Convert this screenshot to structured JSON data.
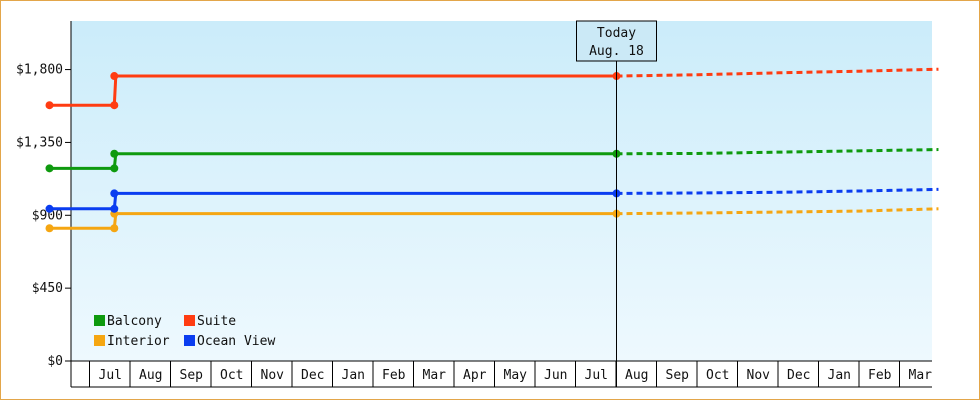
{
  "colors": {
    "frame_border": "#e3a64a",
    "plot_bg_top": "#cbecfa",
    "plot_bg_bottom": "#eef9fe",
    "axis": "#000000",
    "today_box_bg": "#cbe9f6"
  },
  "today_marker": {
    "line1": "Today",
    "line2": "Aug. 18",
    "x_index": 14
  },
  "chart_data": {
    "type": "line",
    "title": "",
    "xlabel": "",
    "ylabel": "",
    "ylim": [
      0,
      2100
    ],
    "y_ticks": [
      {
        "value": 0,
        "label": "$0"
      },
      {
        "value": 450,
        "label": "$450"
      },
      {
        "value": 900,
        "label": "$900"
      },
      {
        "value": 1350,
        "label": "$1,350"
      },
      {
        "value": 1800,
        "label": "$1,800"
      }
    ],
    "x_months": [
      "",
      "Jul",
      "Aug",
      "Sep",
      "Oct",
      "Nov",
      "Dec",
      "Jan",
      "Feb",
      "Mar",
      "Apr",
      "May",
      "Jun",
      "Jul",
      "Aug",
      "Sep",
      "Oct",
      "Nov",
      "Dec",
      "Jan",
      "Feb",
      "Mar"
    ],
    "x_range": [
      0,
      21.95
    ],
    "legend_position": "bottom-left",
    "series": [
      {
        "name": "Balcony",
        "color": "#0e9a0e",
        "points": [
          [
            0,
            1190
          ],
          [
            1.6,
            1190
          ],
          [
            1.6,
            1280
          ],
          [
            14.0,
            1280
          ]
        ],
        "forecast": [
          [
            14.0,
            1280
          ],
          [
            16.0,
            1282
          ],
          [
            18.0,
            1290
          ],
          [
            20.0,
            1298
          ],
          [
            21.95,
            1306
          ]
        ]
      },
      {
        "name": "Suite",
        "color": "#ff3c12",
        "points": [
          [
            0,
            1580
          ],
          [
            1.6,
            1580
          ],
          [
            1.6,
            1760
          ],
          [
            14.0,
            1760
          ]
        ],
        "forecast": [
          [
            14.0,
            1760
          ],
          [
            16.0,
            1768
          ],
          [
            18.0,
            1780
          ],
          [
            20.0,
            1790
          ],
          [
            21.95,
            1802
          ]
        ]
      },
      {
        "name": "Interior",
        "color": "#f5a612",
        "points": [
          [
            0,
            820
          ],
          [
            1.6,
            820
          ],
          [
            1.6,
            910
          ],
          [
            14.0,
            910
          ]
        ],
        "forecast": [
          [
            14.0,
            910
          ],
          [
            16.0,
            914
          ],
          [
            18.0,
            920
          ],
          [
            20.0,
            926
          ],
          [
            21.95,
            940
          ]
        ]
      },
      {
        "name": "Ocean View",
        "color": "#0a3df0",
        "points": [
          [
            0,
            940
          ],
          [
            1.6,
            940
          ],
          [
            1.6,
            1035
          ],
          [
            14.0,
            1035
          ]
        ],
        "forecast": [
          [
            14.0,
            1035
          ],
          [
            16.0,
            1038
          ],
          [
            18.0,
            1042
          ],
          [
            20.0,
            1050
          ],
          [
            21.95,
            1060
          ]
        ]
      }
    ]
  }
}
